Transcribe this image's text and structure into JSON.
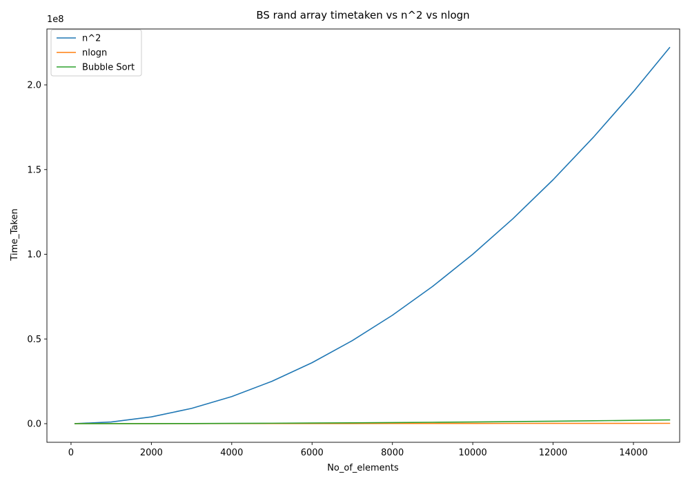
{
  "chart_data": {
    "type": "line",
    "title": "BS rand array timetaken vs n^2 vs nlogn",
    "xlabel": "No_of_elements",
    "ylabel": "Time_Taken",
    "y_offset_label": "1e8",
    "xlim": [
      -600,
      15150
    ],
    "ylim": [
      -11000000,
      233000000
    ],
    "x_ticks": [
      0,
      2000,
      4000,
      6000,
      8000,
      10000,
      12000,
      14000
    ],
    "x_tick_labels": [
      "0",
      "2000",
      "4000",
      "6000",
      "8000",
      "10000",
      "12000",
      "14000"
    ],
    "y_ticks": [
      0,
      50000000,
      100000000,
      150000000,
      200000000
    ],
    "y_tick_labels": [
      "0.0",
      "0.5",
      "1.0",
      "1.5",
      "2.0"
    ],
    "grid": false,
    "legend_position": "top-left",
    "x": [
      100,
      1000,
      2000,
      3000,
      4000,
      5000,
      6000,
      7000,
      8000,
      9000,
      10000,
      11000,
      12000,
      13000,
      14000,
      14900
    ],
    "series": [
      {
        "name": "n^2",
        "color": "#1f77b4",
        "values": [
          10000,
          1000000,
          4000000,
          9000000,
          16000000,
          25000000,
          36000000,
          49000000,
          64000000,
          81000000,
          100000000,
          121000000,
          144000000,
          169000000,
          196000000,
          222010000
        ]
      },
      {
        "name": "nlogn",
        "color": "#ff7f0e",
        "values": [
          664,
          9966,
          21932,
          34652,
          47863,
          61439,
          75304,
          89412,
          103726,
          118221,
          132877,
          147677,
          162608,
          177658,
          192817,
          206575
        ]
      },
      {
        "name": "Bubble Sort",
        "color": "#2ca02c",
        "values": [
          500,
          10000,
          40000,
          90000,
          160000,
          250000,
          360000,
          490000,
          640000,
          810000,
          1000000,
          1210000,
          1440000,
          1690000,
          1960000,
          2220000
        ]
      }
    ]
  }
}
